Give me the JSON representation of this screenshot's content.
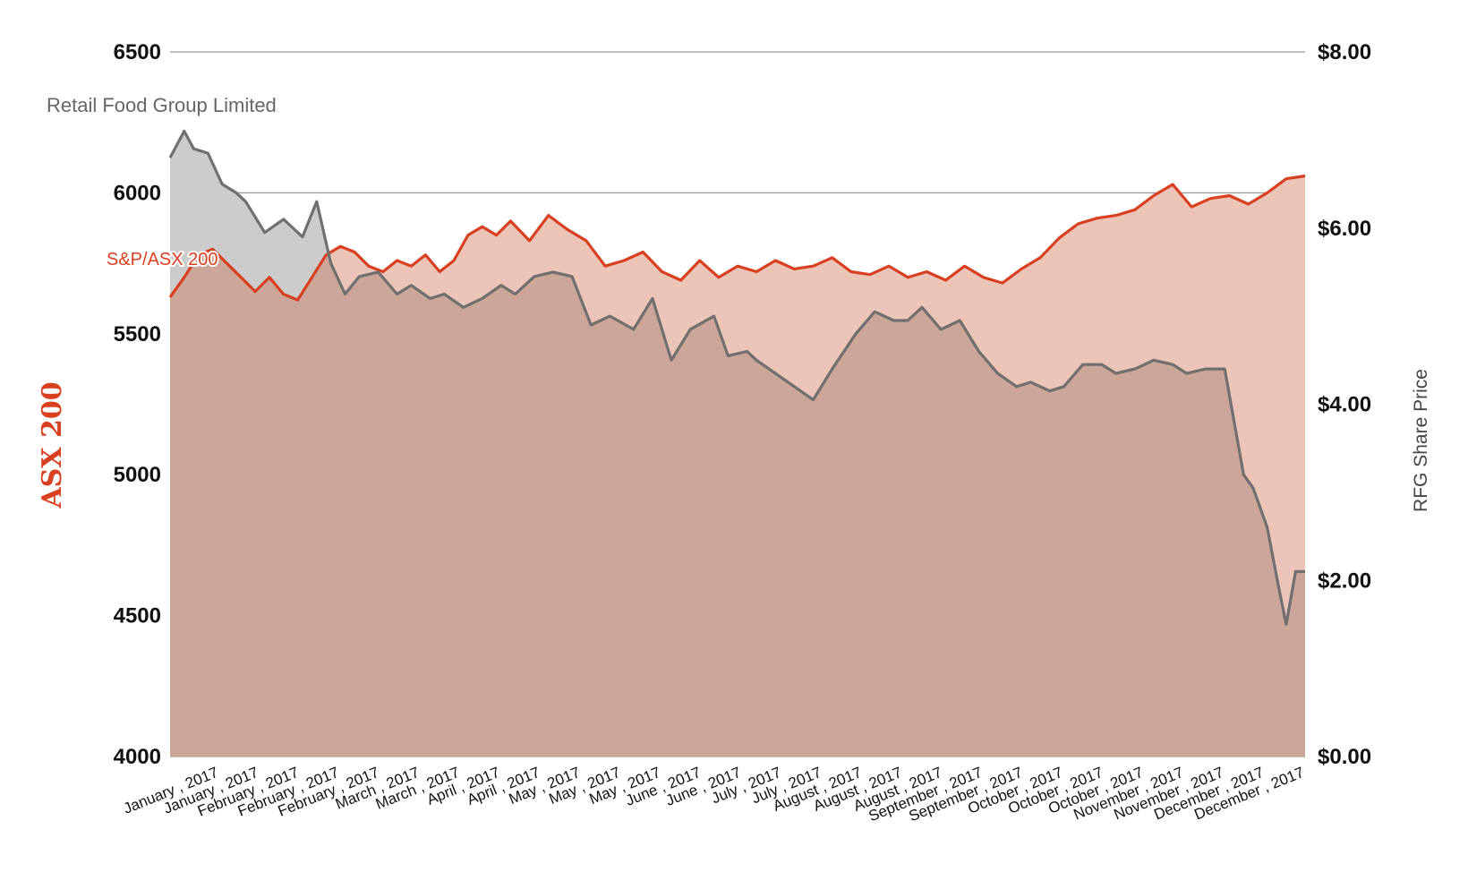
{
  "colors": {
    "asx_line": "#d9401f",
    "asx_fill": "#ecc4b8",
    "rfg_line": "#707070",
    "rfg_fill": "#cccccc",
    "overlap_fill": "#cba699",
    "axis_title_red": "#d9401f"
  },
  "chart_data": {
    "type": "area",
    "grid": true,
    "y_left": {
      "label": "ASX 200",
      "range": [
        4000,
        6500
      ],
      "ticks": [
        "6500",
        "6000",
        "5500",
        "5000",
        "4500",
        "4000"
      ]
    },
    "y_right": {
      "label": "RFG Share Price",
      "range": [
        0,
        8
      ],
      "ticks": [
        "$8.00",
        "$6.00",
        "$4.00",
        "$2.00",
        "$0.00"
      ]
    },
    "x": {
      "range": [
        0,
        23
      ],
      "ticks": [
        "January , 2017",
        "January , 2017",
        "February , 2017",
        "February , 2017",
        "February , 2017",
        "March , 2017",
        "March , 2017",
        "April , 2017",
        "April , 2017",
        "May , 2017",
        "May , 2017",
        "May , 2017",
        "June , 2017",
        "June , 2017",
        "July , 2017",
        "July , 2017",
        "August , 2017",
        "August , 2017",
        "August , 2017",
        "September , 2017",
        "September , 2017",
        "October , 2017",
        "October , 2017",
        "October , 2017",
        "November , 2017",
        "November , 2017",
        "December , 2017",
        "December , 2017"
      ]
    },
    "series": [
      {
        "name": "Retail Food Group Limited",
        "axis": "right",
        "x": [
          0.0,
          0.3,
          0.5,
          0.8,
          1.1,
          1.4,
          1.6,
          2.0,
          2.4,
          2.8,
          3.1,
          3.4,
          3.7,
          4.0,
          4.4,
          4.8,
          5.1,
          5.5,
          5.8,
          6.2,
          6.6,
          7.0,
          7.3,
          7.7,
          8.1,
          8.5,
          8.9,
          9.3,
          9.8,
          10.2,
          10.6,
          11.0,
          11.5,
          11.8,
          12.2,
          12.4,
          12.8,
          13.2,
          13.6,
          14.0,
          14.5,
          14.9,
          15.3,
          15.6,
          15.9,
          16.3,
          16.7,
          17.1,
          17.5,
          17.9,
          18.2,
          18.6,
          18.9,
          19.3,
          19.7,
          20.0,
          20.4,
          20.8,
          21.2,
          21.5,
          21.9,
          22.3,
          22.7,
          22.9,
          23.0,
          23.2,
          23.45,
          23.6,
          23.8,
          24.0
        ],
        "values": [
          6.8,
          7.1,
          6.9,
          6.85,
          6.5,
          6.4,
          6.3,
          5.95,
          6.1,
          5.9,
          6.3,
          5.6,
          5.25,
          5.45,
          5.5,
          5.25,
          5.35,
          5.2,
          5.25,
          5.1,
          5.2,
          5.35,
          5.25,
          5.45,
          5.5,
          5.45,
          4.9,
          5.0,
          4.85,
          5.2,
          4.5,
          4.85,
          5.0,
          4.55,
          4.6,
          4.5,
          4.35,
          4.2,
          4.05,
          4.4,
          4.8,
          5.05,
          4.95,
          4.95,
          5.1,
          4.85,
          4.95,
          4.6,
          4.35,
          4.2,
          4.25,
          4.15,
          4.2,
          4.45,
          4.45,
          4.35,
          4.4,
          4.5,
          4.45,
          4.35,
          4.4,
          4.4,
          3.2,
          3.05,
          2.9,
          2.6,
          1.9,
          1.5,
          2.1,
          2.1
        ]
      },
      {
        "name": "S&P/ASX 200",
        "axis": "left",
        "x": [
          0.0,
          0.3,
          0.6,
          0.9,
          1.2,
          1.5,
          1.8,
          2.1,
          2.4,
          2.7,
          3.0,
          3.3,
          3.6,
          3.9,
          4.2,
          4.5,
          4.8,
          5.1,
          5.4,
          5.7,
          6.0,
          6.3,
          6.6,
          6.9,
          7.2,
          7.6,
          8.0,
          8.4,
          8.8,
          9.2,
          9.6,
          10.0,
          10.4,
          10.8,
          11.2,
          11.6,
          12.0,
          12.4,
          12.8,
          13.2,
          13.6,
          14.0,
          14.4,
          14.8,
          15.2,
          15.6,
          16.0,
          16.4,
          16.8,
          17.2,
          17.6,
          18.0,
          18.4,
          18.8,
          19.2,
          19.6,
          20.0,
          20.4,
          20.8,
          21.2,
          21.6,
          22.0,
          22.4,
          22.8,
          23.2,
          23.6,
          24.0
        ],
        "values": [
          5630,
          5700,
          5780,
          5800,
          5750,
          5700,
          5650,
          5700,
          5640,
          5620,
          5700,
          5780,
          5810,
          5790,
          5740,
          5720,
          5760,
          5740,
          5780,
          5720,
          5760,
          5850,
          5880,
          5850,
          5900,
          5830,
          5920,
          5870,
          5830,
          5740,
          5760,
          5790,
          5720,
          5690,
          5760,
          5700,
          5740,
          5720,
          5760,
          5730,
          5740,
          5770,
          5720,
          5710,
          5740,
          5700,
          5720,
          5690,
          5740,
          5700,
          5680,
          5730,
          5770,
          5840,
          5890,
          5910,
          5920,
          5940,
          5990,
          6030,
          5950,
          5980,
          5990,
          5960,
          6000,
          6050,
          6060
        ]
      }
    ]
  }
}
